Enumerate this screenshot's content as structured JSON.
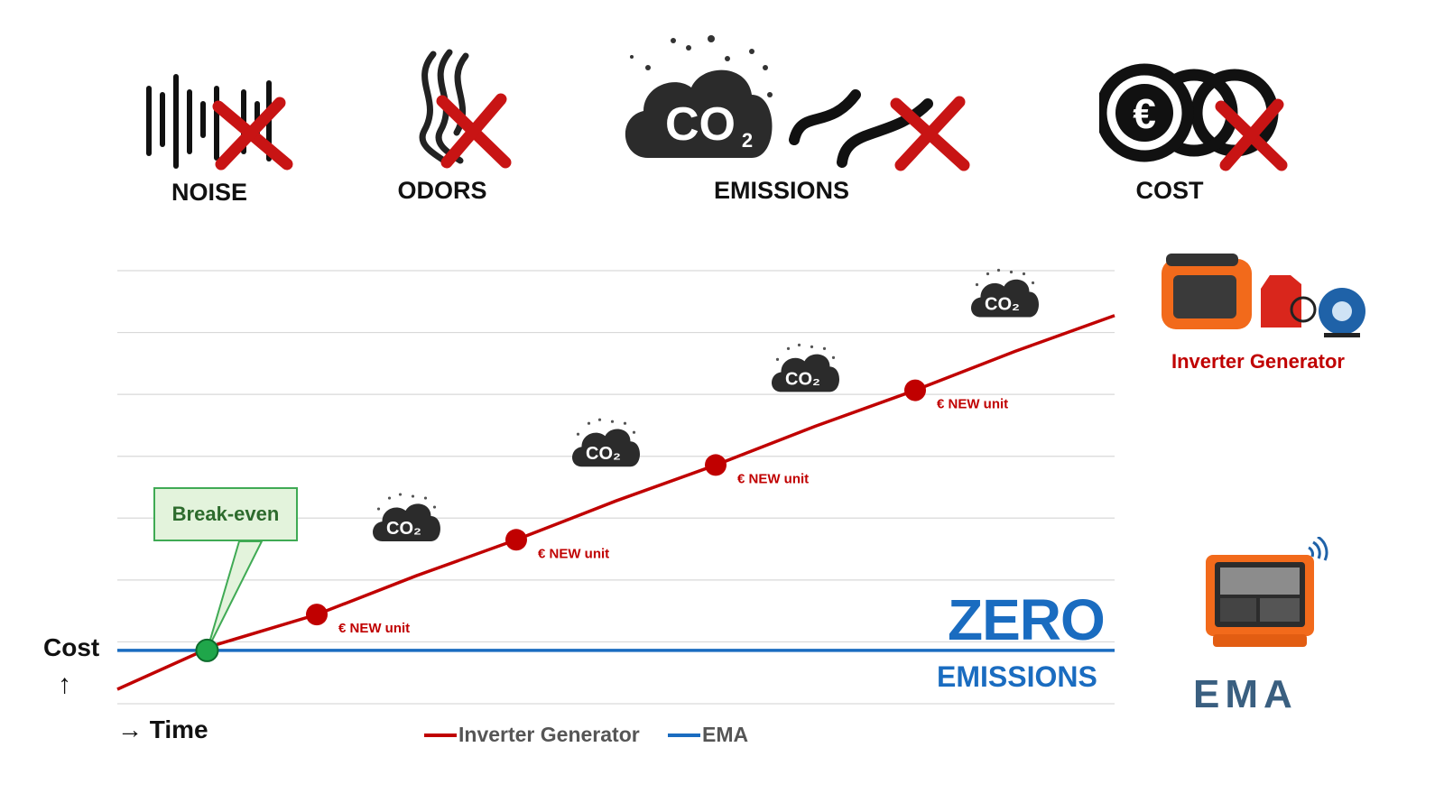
{
  "icons": {
    "noise": {
      "label": "NOISE",
      "icon": "noise-icon"
    },
    "odors": {
      "label": "ODORS",
      "icon": "odor-icon"
    },
    "emissions": {
      "label": "EMISSIONS",
      "icon": "co2-cloud-icon",
      "cloud_text": "CO₂"
    },
    "cost": {
      "label": "COST",
      "icon": "euro-coins-icon",
      "coin_text": "€"
    }
  },
  "chart_data": {
    "type": "line",
    "xlabel": "→ Time",
    "ylabel": "Cost ↑",
    "grid": true,
    "x": [
      0,
      1,
      2,
      3,
      4,
      5,
      6,
      7,
      8,
      9,
      10
    ],
    "series": [
      {
        "name": "Inverter Generator",
        "color": "#c00000",
        "values": [
          0,
          1.5,
          2.5,
          3.8,
          5,
          6.3,
          7.5,
          8.8,
          10,
          11.3,
          12.5
        ]
      },
      {
        "name": "EMA",
        "color": "#1a6cc0",
        "values": [
          1.3,
          1.3,
          1.3,
          1.3,
          1.3,
          1.3,
          1.3,
          1.3,
          1.3,
          1.3,
          1.3
        ]
      }
    ],
    "annotations": {
      "break_even": "Break-even",
      "new_unit": "€ NEW unit",
      "co2": "CO₂"
    }
  },
  "legend": {
    "generator": "Inverter Generator",
    "ema": "EMA",
    "generator_color": "#c00000",
    "ema_color": "#1a6cc0"
  },
  "zero_emissions": {
    "big": "ZERO",
    "small": "EMISSIONS"
  },
  "products": {
    "generator_label": "Inverter Generator",
    "ema_logo": "EMA"
  }
}
